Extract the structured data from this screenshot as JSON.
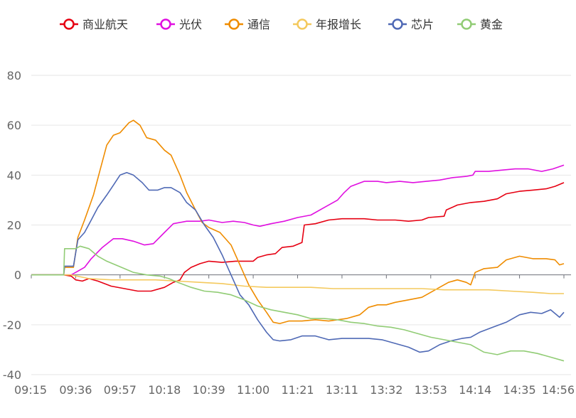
{
  "chart_data": {
    "type": "line",
    "title": "",
    "xlabel": "",
    "ylabel": "",
    "ylim": [
      -40,
      80
    ],
    "yticks": [
      -40,
      -20,
      0,
      20,
      40,
      60,
      80
    ],
    "xtick_labels": [
      "09:15",
      "09:36",
      "09:57",
      "10:18",
      "10:39",
      "11:00",
      "11:21",
      "13:11",
      "13:32",
      "13:53",
      "14:14",
      "14:35",
      "14:56"
    ],
    "grid": "horizontal",
    "legend_position": "top",
    "x_note": "x values are positions in the intraday tick axis: 0 = 09:15, 12 = 14:56",
    "series": [
      {
        "name": "商业航天",
        "color": "#e60012",
        "points": [
          [
            0,
            0
          ],
          [
            0.73,
            0
          ],
          [
            0.9,
            -0.5
          ],
          [
            1.0,
            -2
          ],
          [
            1.15,
            -2.5
          ],
          [
            1.3,
            -1.5
          ],
          [
            1.5,
            -2.5
          ],
          [
            1.8,
            -4.5
          ],
          [
            2.1,
            -5.5
          ],
          [
            2.4,
            -6.5
          ],
          [
            2.7,
            -6.5
          ],
          [
            3.0,
            -5
          ],
          [
            3.2,
            -3
          ],
          [
            3.35,
            -2
          ],
          [
            3.45,
            1
          ],
          [
            3.6,
            3
          ],
          [
            3.8,
            4.5
          ],
          [
            4.0,
            5.5
          ],
          [
            4.3,
            5
          ],
          [
            4.6,
            5.5
          ],
          [
            5.0,
            5.5
          ],
          [
            5.1,
            7
          ],
          [
            5.3,
            8
          ],
          [
            5.5,
            8.5
          ],
          [
            5.65,
            11
          ],
          [
            5.9,
            11.5
          ],
          [
            6.1,
            13
          ],
          [
            6.15,
            20
          ],
          [
            6.4,
            20.5
          ],
          [
            6.7,
            22
          ],
          [
            7.0,
            22.5
          ],
          [
            7.3,
            22.5
          ],
          [
            7.5,
            22.5
          ],
          [
            7.8,
            22
          ],
          [
            8.2,
            22
          ],
          [
            8.5,
            21.5
          ],
          [
            8.8,
            22
          ],
          [
            8.95,
            23
          ],
          [
            9.3,
            23.5
          ],
          [
            9.35,
            26
          ],
          [
            9.6,
            28
          ],
          [
            9.9,
            29
          ],
          [
            10.2,
            29.5
          ],
          [
            10.5,
            30.5
          ],
          [
            10.7,
            32.5
          ],
          [
            11.0,
            33.5
          ],
          [
            11.3,
            34
          ],
          [
            11.6,
            34.5
          ],
          [
            11.8,
            35.5
          ],
          [
            12.0,
            37
          ]
        ]
      },
      {
        "name": "光伏",
        "color": "#e010e0",
        "points": [
          [
            0,
            0
          ],
          [
            0.73,
            0
          ],
          [
            0.9,
            0
          ],
          [
            1.0,
            1
          ],
          [
            1.2,
            3
          ],
          [
            1.35,
            6.5
          ],
          [
            1.6,
            11
          ],
          [
            1.85,
            14.5
          ],
          [
            2.05,
            14.5
          ],
          [
            2.3,
            13.5
          ],
          [
            2.55,
            12
          ],
          [
            2.75,
            12.5
          ],
          [
            3.0,
            17
          ],
          [
            3.2,
            20.5
          ],
          [
            3.5,
            21.5
          ],
          [
            3.8,
            21.5
          ],
          [
            4.0,
            22
          ],
          [
            4.3,
            21
          ],
          [
            4.55,
            21.5
          ],
          [
            4.8,
            21
          ],
          [
            5.0,
            20
          ],
          [
            5.15,
            19.5
          ],
          [
            5.4,
            20.5
          ],
          [
            5.7,
            21.5
          ],
          [
            6.0,
            23
          ],
          [
            6.3,
            24
          ],
          [
            6.6,
            27
          ],
          [
            6.9,
            30
          ],
          [
            7.05,
            33
          ],
          [
            7.2,
            35.5
          ],
          [
            7.5,
            37.5
          ],
          [
            7.8,
            37.5
          ],
          [
            8.0,
            37
          ],
          [
            8.3,
            37.5
          ],
          [
            8.6,
            37
          ],
          [
            8.9,
            37.5
          ],
          [
            9.2,
            38
          ],
          [
            9.5,
            39
          ],
          [
            9.8,
            39.5
          ],
          [
            9.95,
            40
          ],
          [
            10.0,
            41.5
          ],
          [
            10.3,
            41.5
          ],
          [
            10.6,
            42
          ],
          [
            10.9,
            42.5
          ],
          [
            11.2,
            42.5
          ],
          [
            11.5,
            41.5
          ],
          [
            11.75,
            42.5
          ],
          [
            12.0,
            44
          ]
        ]
      },
      {
        "name": "通信",
        "color": "#ef8c00",
        "points": [
          [
            0,
            0
          ],
          [
            0.73,
            0
          ],
          [
            0.75,
            3
          ],
          [
            0.95,
            3
          ],
          [
            1.05,
            15
          ],
          [
            1.2,
            22
          ],
          [
            1.4,
            32
          ],
          [
            1.55,
            42
          ],
          [
            1.7,
            52
          ],
          [
            1.85,
            56
          ],
          [
            2.0,
            57
          ],
          [
            2.2,
            61
          ],
          [
            2.3,
            62
          ],
          [
            2.45,
            60
          ],
          [
            2.6,
            55
          ],
          [
            2.8,
            54
          ],
          [
            3.0,
            50
          ],
          [
            3.15,
            48
          ],
          [
            3.35,
            40
          ],
          [
            3.5,
            33
          ],
          [
            3.7,
            26
          ],
          [
            3.85,
            21
          ],
          [
            4.0,
            19
          ],
          [
            4.25,
            17
          ],
          [
            4.5,
            12
          ],
          [
            4.7,
            4
          ],
          [
            4.9,
            -4
          ],
          [
            5.1,
            -10
          ],
          [
            5.3,
            -15
          ],
          [
            5.45,
            -19
          ],
          [
            5.6,
            -19.5
          ],
          [
            5.8,
            -18.5
          ],
          [
            6.1,
            -18.5
          ],
          [
            6.4,
            -18
          ],
          [
            6.7,
            -18.5
          ],
          [
            6.9,
            -18
          ],
          [
            7.1,
            -17.5
          ],
          [
            7.4,
            -16
          ],
          [
            7.6,
            -13
          ],
          [
            7.8,
            -12
          ],
          [
            8.0,
            -12
          ],
          [
            8.2,
            -11
          ],
          [
            8.5,
            -10
          ],
          [
            8.8,
            -9
          ],
          [
            9.0,
            -7
          ],
          [
            9.2,
            -5
          ],
          [
            9.4,
            -3
          ],
          [
            9.6,
            -2
          ],
          [
            9.8,
            -3
          ],
          [
            9.9,
            -4
          ],
          [
            10.0,
            1
          ],
          [
            10.2,
            2.5
          ],
          [
            10.5,
            3
          ],
          [
            10.7,
            6
          ],
          [
            11.0,
            7.5
          ],
          [
            11.3,
            6.5
          ],
          [
            11.6,
            6.5
          ],
          [
            11.8,
            6
          ],
          [
            11.9,
            4
          ],
          [
            12.0,
            4.5
          ]
        ]
      },
      {
        "name": "年报增长",
        "color": "#f4c95d",
        "points": [
          [
            0,
            0
          ],
          [
            0.73,
            0
          ],
          [
            0.9,
            0
          ],
          [
            1.3,
            -1.5
          ],
          [
            1.8,
            -2
          ],
          [
            2.3,
            -2
          ],
          [
            2.8,
            -2
          ],
          [
            3.3,
            -2.5
          ],
          [
            3.8,
            -3
          ],
          [
            4.3,
            -3.5
          ],
          [
            4.8,
            -4.5
          ],
          [
            5.3,
            -5
          ],
          [
            5.8,
            -5
          ],
          [
            6.3,
            -5
          ],
          [
            6.8,
            -5.5
          ],
          [
            7.3,
            -5.5
          ],
          [
            7.8,
            -5.5
          ],
          [
            8.3,
            -5.5
          ],
          [
            8.8,
            -5.5
          ],
          [
            9.3,
            -6
          ],
          [
            9.8,
            -6
          ],
          [
            10.3,
            -6
          ],
          [
            10.8,
            -6.5
          ],
          [
            11.3,
            -7
          ],
          [
            11.7,
            -7.5
          ],
          [
            12.0,
            -7.5
          ]
        ]
      },
      {
        "name": "芯片",
        "color": "#4f69b5",
        "points": [
          [
            0,
            0
          ],
          [
            0.73,
            0
          ],
          [
            0.75,
            3.5
          ],
          [
            0.95,
            3.5
          ],
          [
            1.05,
            14
          ],
          [
            1.2,
            17
          ],
          [
            1.35,
            22
          ],
          [
            1.5,
            27
          ],
          [
            1.7,
            32
          ],
          [
            1.85,
            36
          ],
          [
            2.0,
            40
          ],
          [
            2.15,
            41
          ],
          [
            2.3,
            40
          ],
          [
            2.5,
            37
          ],
          [
            2.65,
            34
          ],
          [
            2.85,
            34
          ],
          [
            3.0,
            35
          ],
          [
            3.15,
            35
          ],
          [
            3.35,
            33
          ],
          [
            3.5,
            29
          ],
          [
            3.7,
            26
          ],
          [
            3.9,
            20
          ],
          [
            4.1,
            15
          ],
          [
            4.3,
            8
          ],
          [
            4.5,
            0
          ],
          [
            4.7,
            -8
          ],
          [
            4.9,
            -12
          ],
          [
            5.1,
            -18
          ],
          [
            5.3,
            -23
          ],
          [
            5.45,
            -26
          ],
          [
            5.6,
            -26.5
          ],
          [
            5.85,
            -26
          ],
          [
            6.1,
            -24.5
          ],
          [
            6.4,
            -24.5
          ],
          [
            6.7,
            -26
          ],
          [
            7.0,
            -25.5
          ],
          [
            7.3,
            -25.5
          ],
          [
            7.6,
            -25.5
          ],
          [
            7.9,
            -26
          ],
          [
            8.2,
            -27.5
          ],
          [
            8.5,
            -29
          ],
          [
            8.75,
            -31
          ],
          [
            8.95,
            -30.5
          ],
          [
            9.2,
            -28
          ],
          [
            9.45,
            -26.5
          ],
          [
            9.7,
            -25.5
          ],
          [
            9.9,
            -25
          ],
          [
            10.1,
            -23
          ],
          [
            10.4,
            -21
          ],
          [
            10.7,
            -19
          ],
          [
            11.0,
            -16
          ],
          [
            11.25,
            -15
          ],
          [
            11.5,
            -15.5
          ],
          [
            11.7,
            -14
          ],
          [
            11.9,
            -17
          ],
          [
            12.0,
            -15
          ]
        ]
      },
      {
        "name": "黄金",
        "color": "#91cc75",
        "points": [
          [
            0,
            0
          ],
          [
            0.73,
            0
          ],
          [
            0.75,
            10.5
          ],
          [
            1.0,
            10.5
          ],
          [
            1.1,
            11.5
          ],
          [
            1.3,
            10.5
          ],
          [
            1.5,
            7.5
          ],
          [
            1.7,
            5.5
          ],
          [
            1.9,
            4
          ],
          [
            2.1,
            2.5
          ],
          [
            2.3,
            1
          ],
          [
            2.6,
            0
          ],
          [
            2.9,
            -0.5
          ],
          [
            3.1,
            -1.5
          ],
          [
            3.3,
            -3
          ],
          [
            3.6,
            -5
          ],
          [
            3.9,
            -6.5
          ],
          [
            4.2,
            -7
          ],
          [
            4.5,
            -8
          ],
          [
            4.8,
            -10
          ],
          [
            5.1,
            -12.5
          ],
          [
            5.4,
            -14
          ],
          [
            5.7,
            -15
          ],
          [
            6.0,
            -16
          ],
          [
            6.3,
            -17.5
          ],
          [
            6.6,
            -17.5
          ],
          [
            6.9,
            -18
          ],
          [
            7.2,
            -19
          ],
          [
            7.5,
            -19.5
          ],
          [
            7.8,
            -20.5
          ],
          [
            8.1,
            -21
          ],
          [
            8.4,
            -22
          ],
          [
            8.7,
            -23.5
          ],
          [
            9.0,
            -25
          ],
          [
            9.3,
            -26
          ],
          [
            9.6,
            -27
          ],
          [
            9.9,
            -28
          ],
          [
            10.2,
            -31
          ],
          [
            10.5,
            -32
          ],
          [
            10.8,
            -30.5
          ],
          [
            11.1,
            -30.5
          ],
          [
            11.4,
            -31.5
          ],
          [
            11.7,
            -33
          ],
          [
            12.0,
            -34.5
          ]
        ]
      }
    ]
  }
}
